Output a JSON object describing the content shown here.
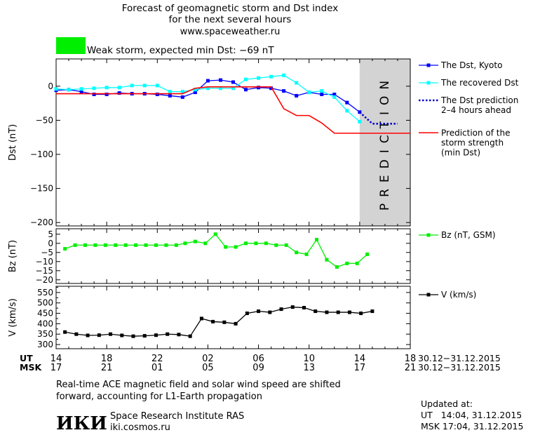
{
  "header": {
    "title_line1": "Forecast of geomagnetic storm and Dst index",
    "title_line2": "for the next several hours",
    "site": "www.spaceweather.ru",
    "storm_text": "Weak storm, expected min Dst: −69 nT",
    "storm_color": "#00ee00"
  },
  "footer": {
    "note_line1": "Real-time ACE magnetic field and solar wind speed are shifted",
    "note_line2": "forward, accounting for L1-Earth propagation",
    "institute": "Space Research Institute RAS",
    "institute_url": "iki.cosmos.ru",
    "logo_text": "ИКИ",
    "updated_label": "Updated at:",
    "updated_ut": "UT   14:04, 31.12.2015",
    "updated_msk": "MSK 17:04, 31.12.2015"
  },
  "time_axis": {
    "ut_label": "UT",
    "msk_label": "MSK",
    "x_range": [
      14,
      42
    ],
    "tick_positions": [
      14,
      18,
      22,
      26,
      30,
      34,
      38,
      42
    ],
    "ut_ticks": [
      "14",
      "18",
      "22",
      "02",
      "06",
      "10",
      "14",
      "18"
    ],
    "msk_ticks": [
      "17",
      "21",
      "01",
      "05",
      "09",
      "13",
      "17",
      "21"
    ],
    "ut_range": "30.12−31.12.2015",
    "msk_range": "30.12−31.12.2015"
  },
  "chart_data": [
    {
      "type": "line",
      "ylabel": "Dst (nT)",
      "ylim": [
        -205,
        40
      ],
      "yticks": [
        0,
        -50,
        -100,
        -150,
        -200
      ],
      "ytick_labels": [
        "0",
        "−50",
        "−100",
        "−150",
        "−200"
      ],
      "prediction_band": {
        "x": [
          38,
          42
        ],
        "label": "PREDICTION",
        "color": "#d3d3d3"
      },
      "series": [
        {
          "name": "The Dst, Kyoto",
          "color": "#0000ff",
          "x": [
            14,
            15,
            16,
            17,
            18,
            19,
            20,
            21,
            22,
            23,
            24,
            25,
            26,
            27,
            28,
            29,
            30,
            31,
            32,
            33,
            34,
            35,
            36,
            37,
            38
          ],
          "y": [
            -6,
            -5,
            -8,
            -12,
            -12,
            -10,
            -11,
            -11,
            -12,
            -14,
            -16,
            -9,
            8,
            9,
            6,
            -5,
            -2,
            -3,
            -7,
            -14,
            -9,
            -12,
            -12,
            -24,
            -38
          ]
        },
        {
          "name": "The recovered Dst",
          "color": "#00ffff",
          "x": [
            14,
            15,
            16,
            17,
            18,
            19,
            20,
            21,
            22,
            23,
            24,
            25,
            26,
            27,
            28,
            29,
            30,
            31,
            32,
            33,
            34,
            35,
            36,
            37,
            38
          ],
          "y": [
            -4,
            -5,
            -4,
            -3,
            -2,
            -2,
            1,
            1,
            1,
            -8,
            -8,
            -5,
            -3,
            -3,
            -3,
            10,
            12,
            14,
            16,
            5,
            -9,
            -7,
            -16,
            -36,
            -52
          ]
        },
        {
          "name": "The Dst prediction\n2–4 hours ahead",
          "color": "#0000cc",
          "style": "dotted",
          "x": [
            38,
            39,
            40,
            41
          ],
          "y": [
            -38,
            -55,
            -55,
            -55
          ]
        },
        {
          "name": "Prediction of the\nstorm strength\n(min Dst)",
          "color": "#ff0000",
          "x": [
            14,
            24,
            25,
            26,
            31,
            32,
            33,
            34,
            35,
            36,
            37,
            42
          ],
          "y": [
            -11,
            -11,
            -3,
            -1,
            -1,
            -33,
            -43,
            -43,
            -54,
            -69,
            -69,
            -69
          ]
        }
      ]
    },
    {
      "type": "line",
      "ylabel": "Bz (nT)",
      "ylim": [
        -22,
        8
      ],
      "yticks": [
        5,
        0,
        -5,
        -10,
        -15,
        -20
      ],
      "ytick_labels": [
        "5",
        "0",
        "−5",
        "−10",
        "−15",
        "−20"
      ],
      "series": [
        {
          "name": "Bz (nT, GSM)",
          "color": "#00ee00",
          "x": [
            14.7,
            15.5,
            16.3,
            17.1,
            17.9,
            18.7,
            19.5,
            20.3,
            21.1,
            21.9,
            22.7,
            23.5,
            24.2,
            25,
            25.8,
            26.6,
            27.4,
            28.2,
            29,
            29.8,
            30.6,
            31.4,
            32.2,
            33,
            33.8,
            34.6,
            35.4,
            36.2,
            37,
            37.8,
            38.6
          ],
          "y": [
            -3,
            -1,
            -1,
            -1,
            -1,
            -1,
            -1,
            -1,
            -1,
            -1,
            -1,
            -1,
            0,
            1,
            0,
            5,
            -2,
            -2,
            0,
            0,
            0,
            -1,
            -1,
            -5,
            -6,
            2,
            -9,
            -13,
            -11,
            -11,
            -6
          ]
        }
      ]
    },
    {
      "type": "line",
      "ylabel": "V (km/s)",
      "ylim": [
        280,
        580
      ],
      "yticks": [
        550,
        500,
        450,
        400,
        350,
        300
      ],
      "ytick_labels": [
        "550",
        "500",
        "450",
        "400",
        "350",
        "300"
      ],
      "minor_yticks": [
        575,
        525,
        475,
        425,
        375,
        325
      ],
      "series": [
        {
          "name": "V (km/s)",
          "color": "#000000",
          "x": [
            14.7,
            15.6,
            16.5,
            17.4,
            18.3,
            19.2,
            20.1,
            21,
            21.9,
            22.8,
            23.7,
            24.6,
            25.5,
            26.4,
            27.3,
            28.2,
            29.1,
            30,
            30.9,
            31.8,
            32.7,
            33.6,
            34.5,
            35.4,
            36.3,
            37.2,
            38.1,
            39
          ],
          "y": [
            360,
            350,
            344,
            345,
            350,
            344,
            340,
            342,
            345,
            350,
            348,
            340,
            425,
            410,
            407,
            400,
            450,
            460,
            455,
            470,
            480,
            477,
            460,
            455,
            455,
            455,
            450,
            460
          ]
        }
      ]
    }
  ]
}
